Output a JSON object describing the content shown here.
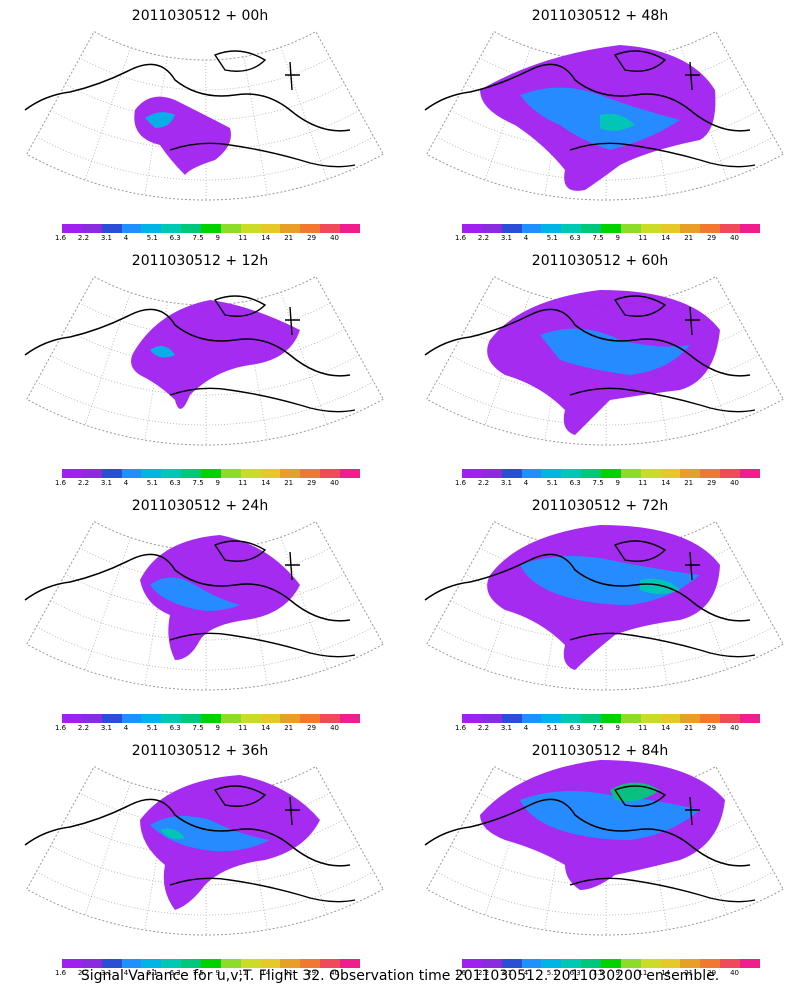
{
  "panels": [
    {
      "title": "2011030512 + 00h"
    },
    {
      "title": "2011030512 + 48h"
    },
    {
      "title": "2011030512 + 12h"
    },
    {
      "title": "2011030512 + 60h"
    },
    {
      "title": "2011030512 + 24h"
    },
    {
      "title": "2011030512 + 72h"
    },
    {
      "title": "2011030512 + 36h"
    },
    {
      "title": "2011030512 + 84h"
    }
  ],
  "colorbar": {
    "colors": [
      "#a020f0",
      "#8a2be2",
      "#2a4fd6",
      "#1e90ff",
      "#00b4e6",
      "#00c8b4",
      "#00c87a",
      "#00d200",
      "#8cdc28",
      "#c8dc28",
      "#e6c828",
      "#e6a028",
      "#f07830",
      "#f04a5a",
      "#f01e8c"
    ],
    "labels": [
      "1.6",
      "2.2",
      "3.1",
      "4",
      "5.1",
      "6.3",
      "7.5",
      "9",
      "11",
      "14",
      "21",
      "29",
      "40"
    ]
  },
  "caption": "Signal Variance for u,v,T. Flight 32. Observation time 2011030512. 2011030200 ensemble."
}
